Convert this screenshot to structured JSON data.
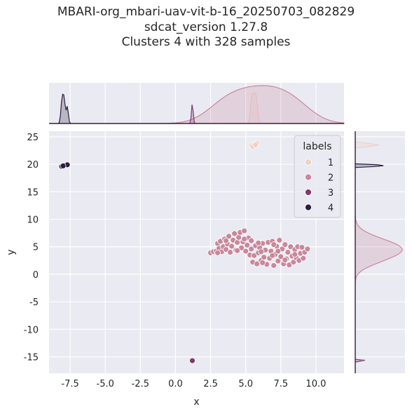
{
  "title_lines": [
    "MBARI-org_mbari-uav-vit-b-16_20250703_082829",
    "sdcat_version 1.27.8",
    "Clusters 4 with 328 samples"
  ],
  "colors": {
    "background": "#eaeaf2",
    "grid": "#ffffff",
    "label_1": "#efd1c6",
    "label_2": "#c8889c",
    "label_3": "#7c3a70",
    "label_4": "#2c1e3e"
  },
  "chart_data": {
    "type": "scatter",
    "xlabel": "x",
    "ylabel": "y",
    "xlim": [
      -9.0,
      12.0
    ],
    "ylim": [
      -18.0,
      26.0
    ],
    "xticks": [
      "-7.5",
      "-5.0",
      "-2.5",
      "0.0",
      "2.5",
      "5.0",
      "7.5",
      "10.0"
    ],
    "yticks": [
      "25",
      "20",
      "15",
      "10",
      "5",
      "0",
      "-5",
      "-10",
      "-15"
    ],
    "grid": true,
    "marginals": "kde",
    "legend": {
      "title": "labels",
      "position": "top-right",
      "entries": [
        "1",
        "2",
        "3",
        "4"
      ]
    },
    "series": [
      {
        "name": "1",
        "color": "#efd1c6",
        "points": [
          [
            5.4,
            23.4
          ],
          [
            5.6,
            23.6
          ],
          [
            5.8,
            23.8
          ],
          [
            5.5,
            23.2
          ],
          [
            5.7,
            23.5
          ]
        ]
      },
      {
        "name": "2",
        "color": "#c8889c",
        "points": [
          [
            2.5,
            3.9
          ],
          [
            2.7,
            4.1
          ],
          [
            2.9,
            4.2
          ],
          [
            3.0,
            5.6
          ],
          [
            3.1,
            4.7
          ],
          [
            3.2,
            6.0
          ],
          [
            3.3,
            4.1
          ],
          [
            3.4,
            5.0
          ],
          [
            3.5,
            6.4
          ],
          [
            3.6,
            4.5
          ],
          [
            3.7,
            5.5
          ],
          [
            3.8,
            6.9
          ],
          [
            3.9,
            4.0
          ],
          [
            4.0,
            5.1
          ],
          [
            4.1,
            6.2
          ],
          [
            4.2,
            7.4
          ],
          [
            4.3,
            4.4
          ],
          [
            4.4,
            5.8
          ],
          [
            4.5,
            6.7
          ],
          [
            4.6,
            7.6
          ],
          [
            4.7,
            4.8
          ],
          [
            4.8,
            5.9
          ],
          [
            4.9,
            7.9
          ],
          [
            5.0,
            4.2
          ],
          [
            5.1,
            5.3
          ],
          [
            5.2,
            6.6
          ],
          [
            5.3,
            3.5
          ],
          [
            5.4,
            4.6
          ],
          [
            5.5,
            2.2
          ],
          [
            5.6,
            3.4
          ],
          [
            5.7,
            5.2
          ],
          [
            5.8,
            1.9
          ],
          [
            5.9,
            3.9
          ],
          [
            6.0,
            4.8
          ],
          [
            6.1,
            2.5
          ],
          [
            6.2,
            5.6
          ],
          [
            6.3,
            3.1
          ],
          [
            6.4,
            4.4
          ],
          [
            6.5,
            1.8
          ],
          [
            6.6,
            5.8
          ],
          [
            6.7,
            2.9
          ],
          [
            6.8,
            4.2
          ],
          [
            6.9,
            6.0
          ],
          [
            7.0,
            1.6
          ],
          [
            7.1,
            3.6
          ],
          [
            7.2,
            5.1
          ],
          [
            7.3,
            2.4
          ],
          [
            7.4,
            6.2
          ],
          [
            7.5,
            3.2
          ],
          [
            7.6,
            4.6
          ],
          [
            7.7,
            1.9
          ],
          [
            7.8,
            5.4
          ],
          [
            7.9,
            2.8
          ],
          [
            8.0,
            4.0
          ],
          [
            8.1,
            1.7
          ],
          [
            8.2,
            5.0
          ],
          [
            8.3,
            3.3
          ],
          [
            8.4,
            2.2
          ],
          [
            8.5,
            4.5
          ],
          [
            8.6,
            3.0
          ],
          [
            8.7,
            5.0
          ],
          [
            8.8,
            2.5
          ],
          [
            8.9,
            3.8
          ],
          [
            9.0,
            4.9
          ],
          [
            9.1,
            2.9
          ],
          [
            9.2,
            4.0
          ],
          [
            9.4,
            4.6
          ],
          [
            4.4,
            4.3
          ],
          [
            5.4,
            6.1
          ],
          [
            6.2,
            2.1
          ],
          [
            7.8,
            2.6
          ],
          [
            3.0,
            3.9
          ],
          [
            6.9,
            3.4
          ],
          [
            4.9,
            6.4
          ],
          [
            5.9,
            5.7
          ],
          [
            7.3,
            4.2
          ],
          [
            8.5,
            3.6
          ],
          [
            3.6,
            6.1
          ],
          [
            6.1,
            4.1
          ],
          [
            7.0,
            5.4
          ]
        ]
      },
      {
        "name": "3",
        "color": "#7c3a70",
        "points": [
          [
            1.2,
            -15.7
          ]
        ]
      },
      {
        "name": "4",
        "color": "#2c1e3e",
        "points": [
          [
            -8.1,
            19.6
          ],
          [
            -7.9,
            19.8
          ],
          [
            -7.7,
            19.9
          ],
          [
            -8.0,
            19.7
          ]
        ]
      }
    ]
  }
}
